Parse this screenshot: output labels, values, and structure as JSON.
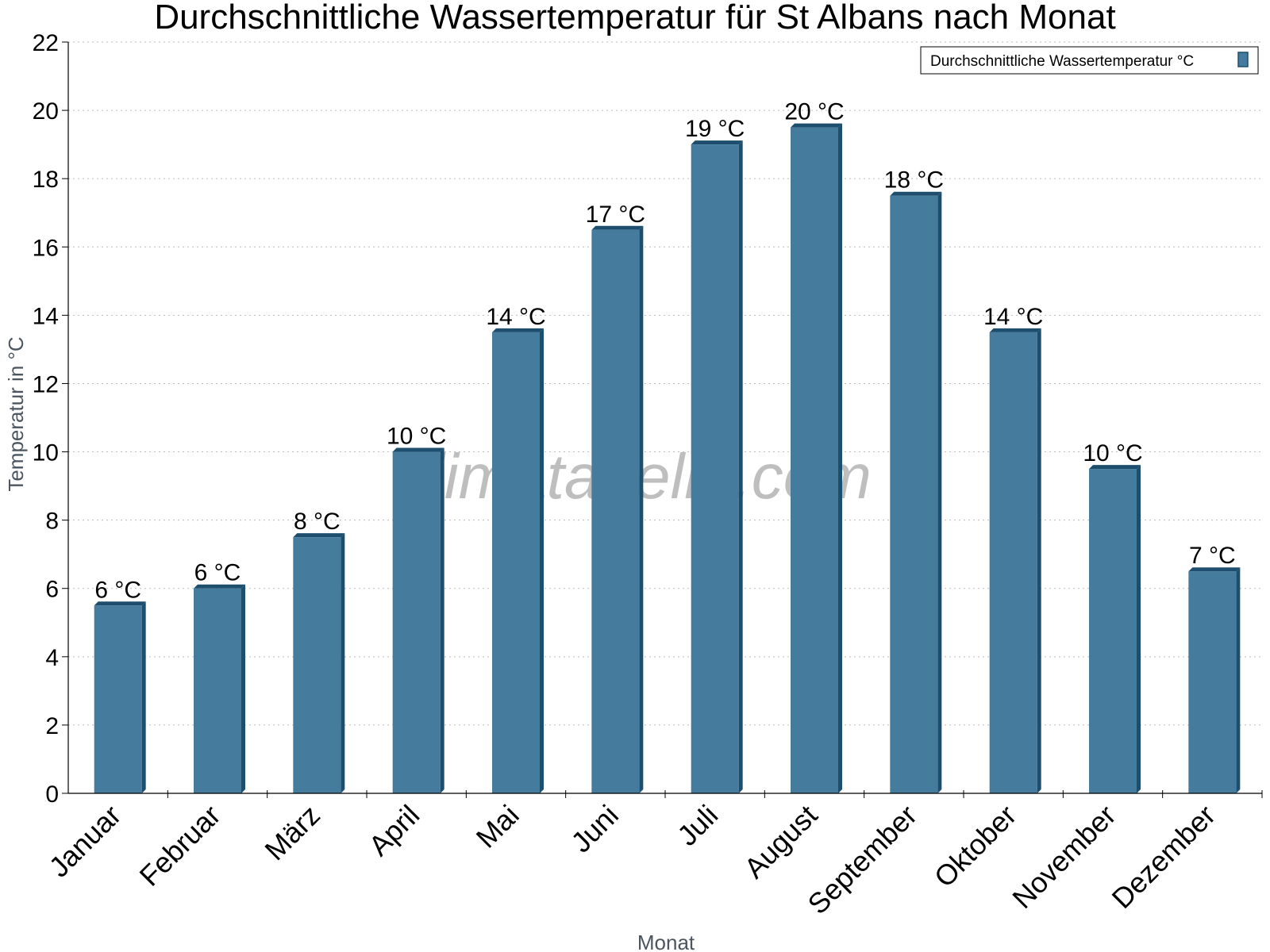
{
  "chart_data": {
    "type": "bar",
    "title": "Durchschnittliche Wassertemperatur für St Albans nach Monat",
    "xlabel": "Monat",
    "ylabel": "Temperatur in °C",
    "ylim": [
      0,
      22
    ],
    "yticks": [
      0,
      2,
      4,
      6,
      8,
      10,
      12,
      14,
      16,
      18,
      20,
      22
    ],
    "grid": true,
    "legend_position": "top-right",
    "categories": [
      "Januar",
      "Februar",
      "März",
      "April",
      "Mai",
      "Juni",
      "Juli",
      "August",
      "September",
      "Oktober",
      "November",
      "Dezember"
    ],
    "series": [
      {
        "name": "Durchschnittliche Wassertemperatur °C",
        "values": [
          5.5,
          6.0,
          7.5,
          10.0,
          13.5,
          16.5,
          19.0,
          19.5,
          17.5,
          13.5,
          9.5,
          6.5
        ],
        "labels": [
          "6 °C",
          "6 °C",
          "8 °C",
          "10 °C",
          "14 °C",
          "17 °C",
          "19 °C",
          "20 °C",
          "18 °C",
          "14 °C",
          "10 °C",
          "7 °C"
        ]
      }
    ],
    "colors": {
      "bar": "#457b9d",
      "bar_side": "#1d4e6e",
      "bar_top": "#1d4e6e",
      "grid": "#bbbbbb",
      "axis": "#000000"
    },
    "watermark": "klimatabelle.com"
  }
}
